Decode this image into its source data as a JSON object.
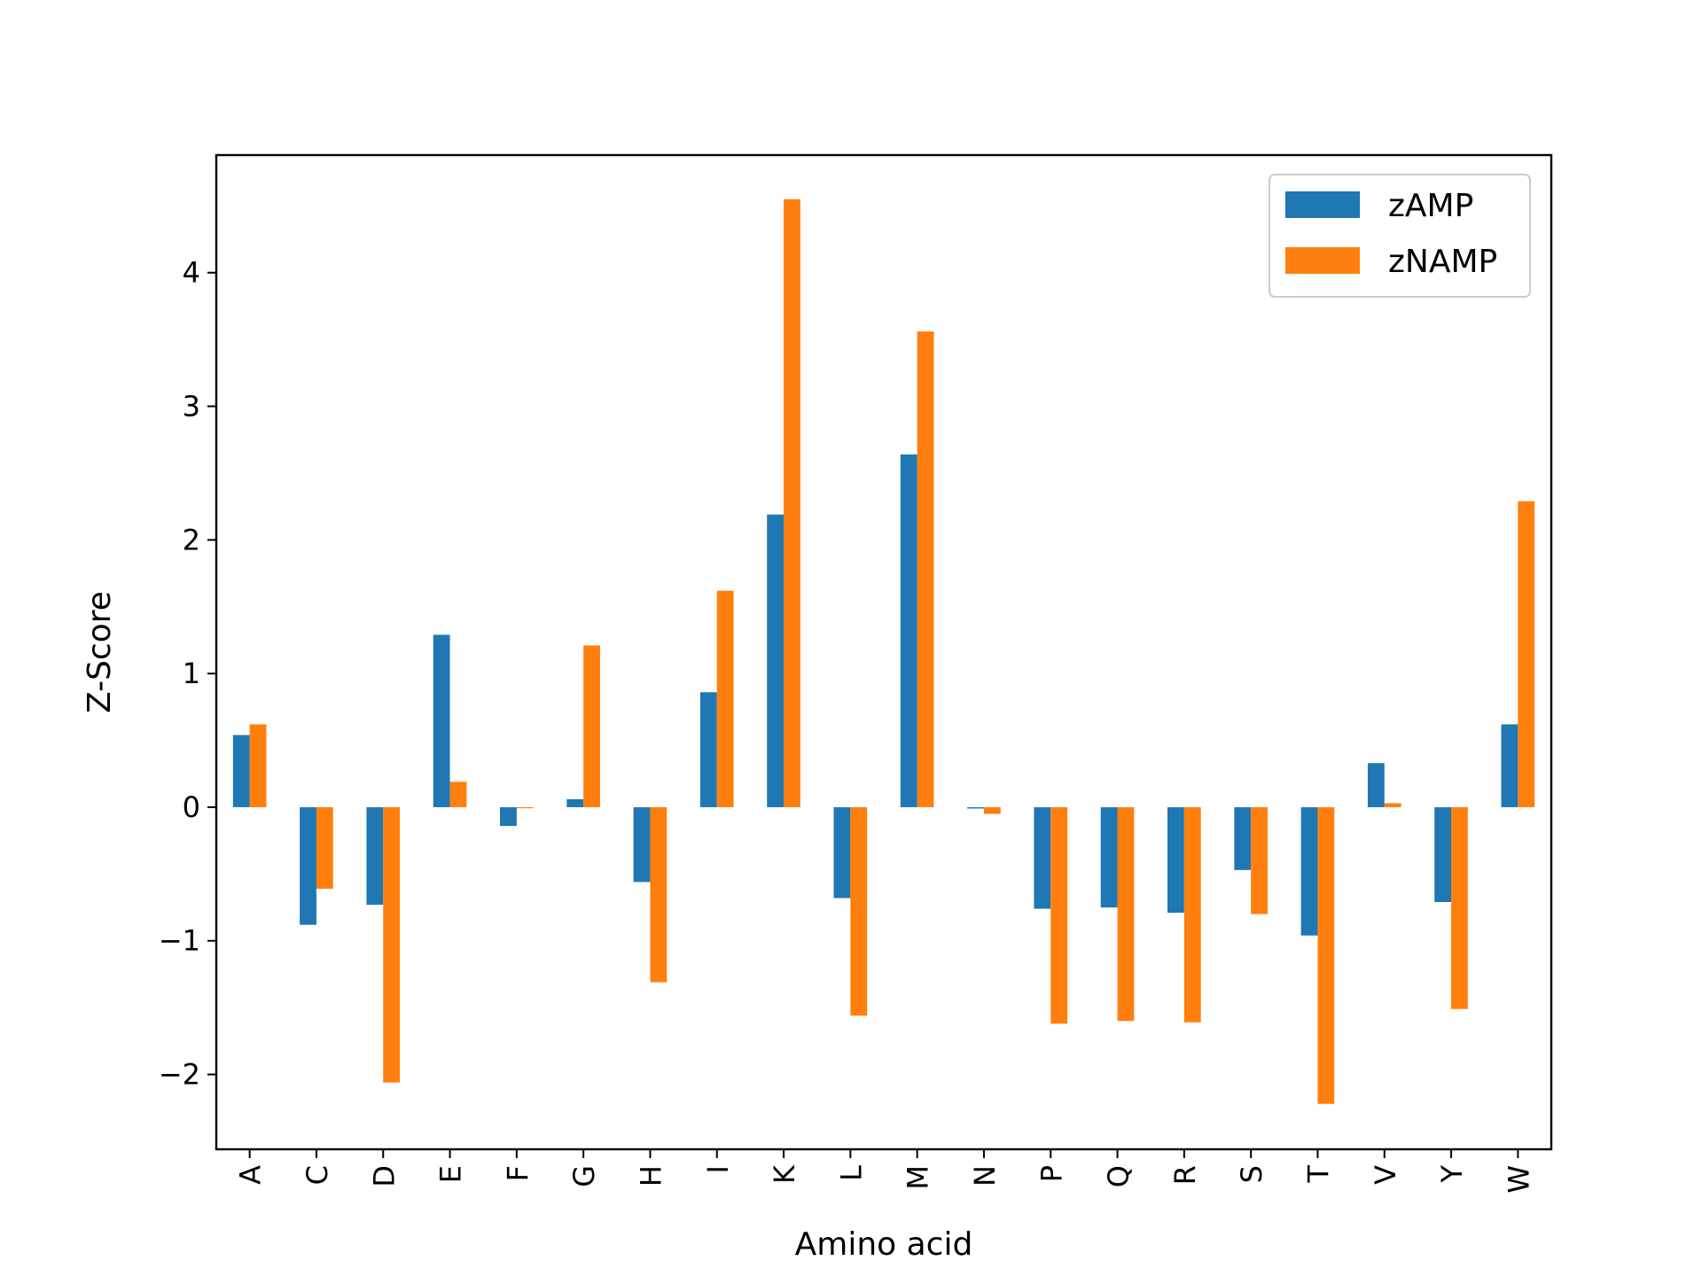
{
  "chart_data": {
    "type": "bar",
    "title": "",
    "xlabel": "Amino acid",
    "ylabel": "Z-Score",
    "categories": [
      "A",
      "C",
      "D",
      "E",
      "F",
      "G",
      "H",
      "I",
      "K",
      "L",
      "M",
      "N",
      "P",
      "Q",
      "R",
      "S",
      "T",
      "V",
      "Y",
      "W"
    ],
    "series": [
      {
        "name": "zAMP",
        "color": "#1f77b4",
        "values": [
          0.54,
          -0.88,
          -0.73,
          1.29,
          -0.14,
          0.06,
          -0.56,
          0.86,
          2.19,
          -0.68,
          2.64,
          -0.01,
          -0.76,
          -0.75,
          -0.79,
          -0.47,
          -0.96,
          0.33,
          -0.71,
          0.62
        ]
      },
      {
        "name": "zNAMP",
        "color": "#ff7f0e",
        "values": [
          0.62,
          -0.61,
          -2.06,
          0.19,
          0.0,
          1.21,
          -1.31,
          1.62,
          4.55,
          -1.56,
          3.56,
          -0.05,
          -1.62,
          -1.6,
          -1.61,
          -0.8,
          -2.22,
          0.03,
          -1.51,
          2.29
        ]
      }
    ],
    "ylim": [
      -2.56,
      4.88
    ],
    "yticks": [
      -2,
      -1,
      0,
      1,
      2,
      3,
      4
    ],
    "ytick_labels": [
      "−2",
      "−1",
      "0",
      "1",
      "2",
      "3",
      "4"
    ],
    "legend_position": "top-right",
    "grid": false
  }
}
